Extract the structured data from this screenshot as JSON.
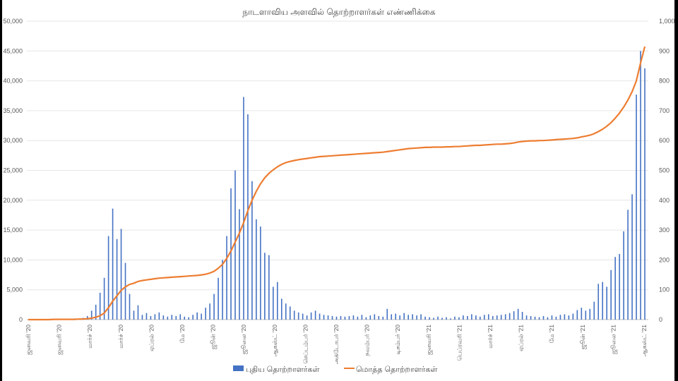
{
  "chart_data": {
    "type": "bar+line",
    "title": "நாடளாவிய அளவில் தொற்றாளர்கள் எண்ணிக்கை",
    "legend_position": "bottom",
    "grid": true,
    "y_left": {
      "range": [
        0,
        50000
      ],
      "ticks": [
        "0",
        "5,000",
        "10,000",
        "15,000",
        "20,000",
        "25,000",
        "30,000",
        "35,000",
        "40,000",
        "45,000",
        "50,000"
      ]
    },
    "y_right": {
      "range": [
        0,
        1000
      ],
      "ticks": [
        "0",
        "100",
        "200",
        "300",
        "400",
        "500",
        "600",
        "700",
        "800",
        "900",
        "1,000"
      ]
    },
    "x_tick_labels": [
      "ஜனவரி '20",
      "ஜனவரி '20",
      "மார்ச் '20",
      "மார்ச் '20",
      "ஏப்ரல் '20",
      "மே '20",
      "ஜூன் '20",
      "ஜூலை '20",
      "ஆகஸ்ட் '20",
      "செப்டம்பர் '20",
      "அக்டோபர் '20",
      "நவம்பர் '20",
      "டிசம்பர் '20",
      "ஜனவரி '21",
      "பெப்ரவரி '21",
      "மார்ச் '21",
      "ஏப்ரல் '21",
      "மே '21",
      "ஜூன் '21",
      "ஜூலை '21",
      "ஆகஸ்ட் '21"
    ],
    "series": [
      {
        "name": "புதிய தொற்றாளர்கள்",
        "type": "bar",
        "axis": "left",
        "color": "#4472C4",
        "values": [
          0,
          0,
          0,
          0,
          0,
          0,
          0,
          0,
          100,
          0,
          100,
          200,
          100,
          300,
          600,
          1500,
          2500,
          4500,
          7000,
          14000,
          18600,
          13500,
          15200,
          9500,
          4300,
          1500,
          2400,
          800,
          1100,
          600,
          900,
          1200,
          700,
          500,
          800,
          600,
          900,
          500,
          400,
          800,
          1200,
          1000,
          2000,
          2700,
          4300,
          7000,
          10000,
          14000,
          22000,
          25000,
          18500,
          37300,
          34400,
          23200,
          16800,
          15600,
          11200,
          10800,
          5500,
          6300,
          3500,
          2700,
          2200,
          1500,
          1200,
          1000,
          700,
          1200,
          1500,
          1000,
          800,
          700,
          600,
          500,
          600,
          500,
          600,
          700,
          500,
          800,
          400,
          700,
          900,
          600,
          500,
          1800,
          900,
          1000,
          700,
          1100,
          800,
          900,
          700,
          900,
          500,
          400,
          300,
          500,
          300,
          400,
          200,
          500,
          400,
          700,
          600,
          900,
          700,
          500,
          800,
          900,
          600,
          700,
          800,
          900,
          1100,
          1400,
          1800,
          1300,
          700,
          600,
          500,
          400,
          600,
          400,
          700,
          500,
          800,
          900,
          700,
          1000,
          1600,
          2000,
          1500,
          1800,
          3000,
          6000,
          6300,
          5500,
          8300,
          10500,
          11000,
          14800,
          18400,
          21000,
          37700,
          45000,
          42100
        ]
      },
      {
        "name": "மொத்த தொற்றாளர்கள்",
        "type": "line",
        "axis": "right",
        "color": "#ED7D31",
        "values": [
          0,
          0,
          0,
          0,
          0,
          0,
          1,
          1,
          1,
          1,
          1,
          1,
          2,
          2,
          3,
          5,
          8,
          13,
          22,
          40,
          62,
          80,
          98,
          110,
          118,
          122,
          128,
          131,
          133,
          135,
          137,
          139,
          140,
          141,
          142,
          143,
          144,
          145,
          146,
          147,
          148,
          150,
          152,
          156,
          162,
          172,
          185,
          205,
          230,
          260,
          290,
          325,
          365,
          400,
          430,
          455,
          475,
          490,
          502,
          512,
          520,
          526,
          530,
          533,
          536,
          538,
          540,
          542,
          544,
          546,
          547,
          548,
          549,
          550,
          551,
          552,
          553,
          554,
          555,
          556,
          557,
          558,
          559,
          560,
          561,
          563,
          565,
          567,
          569,
          571,
          573,
          574,
          575,
          576,
          577,
          577,
          578,
          578,
          578,
          579,
          579,
          580,
          580,
          581,
          582,
          583,
          584,
          584,
          585,
          586,
          587,
          588,
          588,
          589,
          590,
          592,
          595,
          597,
          598,
          599,
          599,
          600,
          600,
          601,
          602,
          603,
          604,
          605,
          606,
          607,
          609,
          612,
          615,
          618,
          623,
          630,
          638,
          648,
          660,
          675,
          692,
          712,
          736,
          764,
          800,
          860,
          915
        ]
      }
    ]
  }
}
